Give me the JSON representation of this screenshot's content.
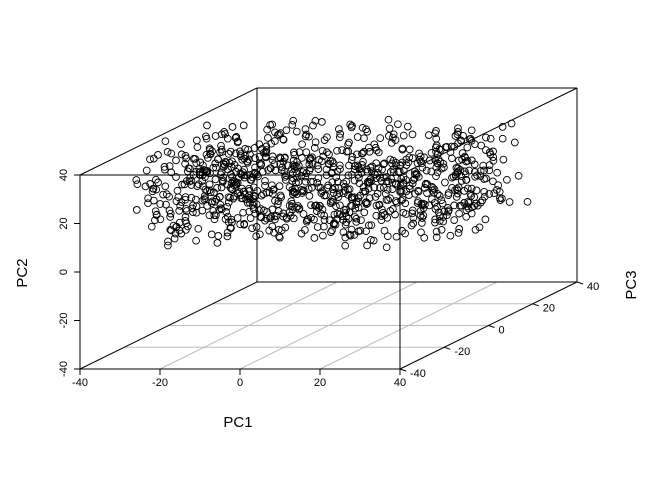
{
  "chart_data": {
    "type": "scatter",
    "subtype": "3d-scatter",
    "title": "",
    "xlabel": "PC1",
    "ylabel": "PC2",
    "zlabel": "PC3",
    "xlim": [
      -40,
      40
    ],
    "ylim": [
      -40,
      40
    ],
    "zlim": [
      -40,
      40
    ],
    "x_ticks": [
      "-40",
      "-20",
      "0",
      "20",
      "40"
    ],
    "y_ticks": [
      "-40",
      "-20",
      "0",
      "20",
      "40"
    ],
    "z_ticks": [
      "-40",
      "-20",
      "0",
      "20",
      "40"
    ],
    "grid": "bottom-plane",
    "marker": "open-circle",
    "point_color": "#000000",
    "point_cloud": {
      "count": 1000,
      "x_range": [
        -40,
        40
      ],
      "y_range": [
        0,
        37
      ],
      "z_range": [
        -20,
        20
      ],
      "distribution": "approximately uniform within the ranges"
    }
  }
}
